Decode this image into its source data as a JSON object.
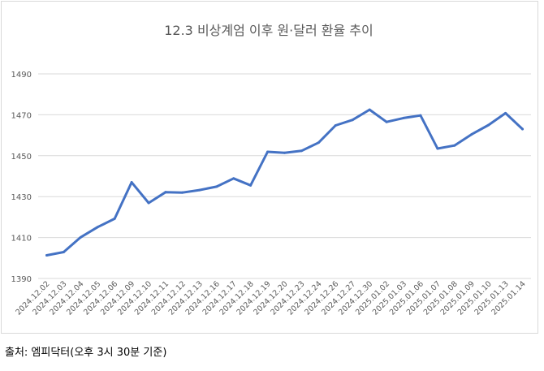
{
  "chart_data": {
    "type": "line",
    "title": "12.3 비상계엄 이후 원·달러 환율 추이",
    "xlabel": "",
    "ylabel": "",
    "ylim": [
      1390,
      1490
    ],
    "yticks": [
      1390,
      1410,
      1430,
      1450,
      1470,
      1490
    ],
    "grid": true,
    "legend": "none",
    "categories": [
      "2024.12.02",
      "2024.12.03",
      "2024.12.04",
      "2024.12.05",
      "2024.12.06",
      "2024.12.09",
      "2024.12.10",
      "2024.12.11",
      "2024.12.12",
      "2024.12.13",
      "2024.12.16",
      "2024.12.17",
      "2024.12.18",
      "2024.12.19",
      "2024.12.20",
      "2024.12.23",
      "2024.12.24",
      "2024.12.26",
      "2024.12.27",
      "2024.12.30",
      "2025.01.02",
      "2025.01.03",
      "2025.01.06",
      "2025.01.07",
      "2025.01.08",
      "2025.01.09",
      "2025.01.10",
      "2025.01.13",
      "2025.01.14"
    ],
    "series": [
      {
        "name": "",
        "color": "#4472c4",
        "values": [
          1401.3,
          1402.9,
          1410.1,
          1415.1,
          1419.2,
          1437.0,
          1426.9,
          1432.2,
          1432.0,
          1433.2,
          1434.9,
          1438.9,
          1435.5,
          1451.9,
          1451.4,
          1452.4,
          1456.4,
          1464.8,
          1467.5,
          1472.5,
          1466.5,
          1468.4,
          1469.7,
          1453.5,
          1455.0,
          1460.4,
          1465.0,
          1470.8,
          1463.0
        ]
      }
    ]
  },
  "source_text": "출처: 엠피닥터(오후 3시 30분 기준)"
}
